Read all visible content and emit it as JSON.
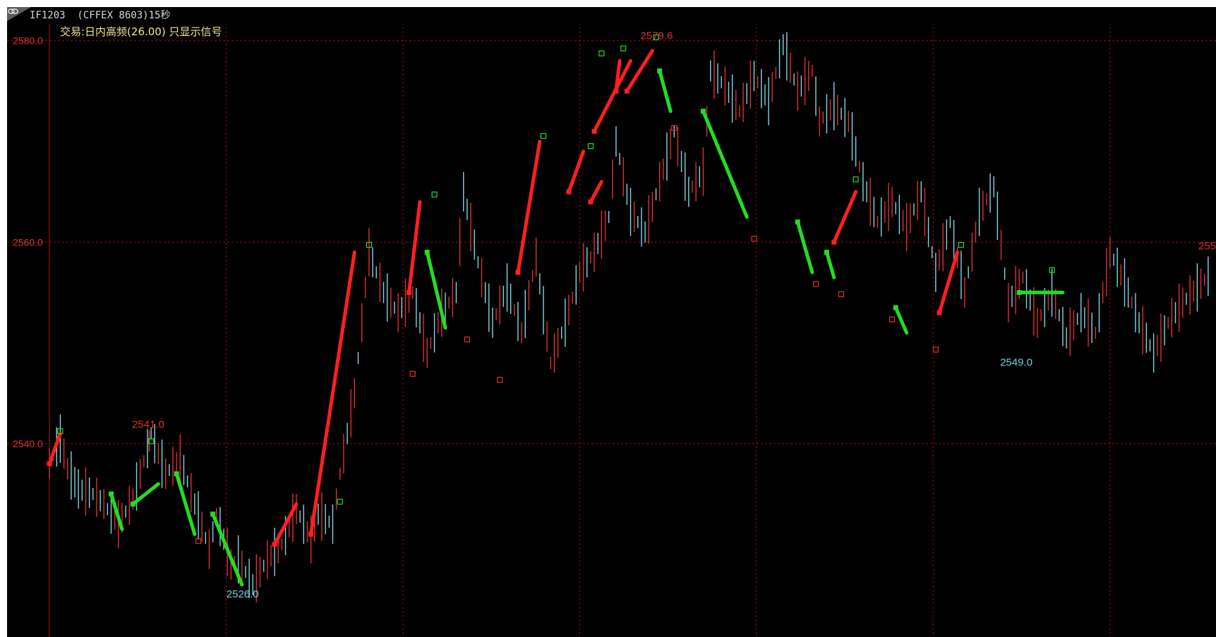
{
  "window": {
    "symbol_title": "IF1203  (CFFEX 8603)15秒",
    "strategy_label": "交易:日内高频(26.00) 只显示信号"
  },
  "colors": {
    "background": "#000000",
    "grid": "#8b1010",
    "axis": "#b01818",
    "up_bar": "#e03030",
    "down_bar": "#7fd6e6",
    "long_signal": "#ff1f1f",
    "short_signal": "#22dd22",
    "label_red": "#e03030",
    "label_cyan": "#6fd3e0"
  },
  "chart_data": {
    "type": "line",
    "title": "",
    "xlabel": "",
    "ylabel": "",
    "ylim": [
      2520.8,
      2581.8
    ],
    "yticks": [
      2540.0,
      2560.0,
      2580.0
    ],
    "ytick_labels": [
      "2540.0",
      "2560.0",
      "2580.0"
    ],
    "grid": true,
    "x_vgrid_count": 6,
    "price_series": {
      "name": "",
      "x": [
        0,
        3,
        5,
        8,
        12,
        15,
        19,
        23,
        27,
        28,
        32,
        36,
        40,
        44,
        46,
        50,
        52,
        56,
        60,
        64,
        68,
        72,
        74,
        78,
        80,
        84,
        88,
        92,
        96,
        100,
        104,
        108,
        112,
        114,
        118,
        122,
        126,
        130,
        134,
        138,
        140,
        142,
        146,
        150,
        154,
        156,
        160,
        164,
        168,
        172,
        176,
        180,
        182,
        186,
        190,
        194,
        198,
        202,
        206,
        210,
        212,
        216,
        220,
        224,
        228,
        232,
        236,
        240,
        244,
        248,
        252,
        256,
        260,
        264,
        268,
        272,
        276,
        280,
        284,
        288,
        292,
        296,
        300,
        304,
        308,
        312,
        316,
        320
      ],
      "y": [
        2538.0,
        2540.5,
        2537.5,
        2535.5,
        2535.0,
        2534.0,
        2532.0,
        2534.5,
        2539.5,
        2541.0,
        2537.0,
        2538.5,
        2534.0,
        2529.5,
        2533.0,
        2528.0,
        2528.5,
        2526.0,
        2528.5,
        2530.0,
        2533.5,
        2530.5,
        2533.0,
        2532.0,
        2537.0,
        2545.0,
        2559.0,
        2555.0,
        2553.0,
        2555.0,
        2549.0,
        2553.0,
        2555.0,
        2565.0,
        2558.0,
        2552.0,
        2555.5,
        2551.0,
        2558.5,
        2548.0,
        2550.0,
        2552.0,
        2557.0,
        2559.0,
        2562.5,
        2570.0,
        2563.0,
        2561.0,
        2566.0,
        2571.0,
        2565.0,
        2567.0,
        2577.0,
        2575.5,
        2573.0,
        2576.5,
        2574.0,
        2579.6,
        2575.0,
        2577.0,
        2572.0,
        2573.5,
        2572.0,
        2566.0,
        2562.0,
        2564.0,
        2561.5,
        2565.0,
        2557.0,
        2562.0,
        2555.0,
        2563.0,
        2565.5,
        2554.0,
        2556.5,
        2552.0,
        2555.0,
        2550.5,
        2553.0,
        2551.0,
        2559.0,
        2556.0,
        2552.0,
        2549.0,
        2552.0,
        2554.0,
        2555.5,
        2557.0
      ]
    },
    "signals": [
      {
        "dir": "long",
        "x": [
          0,
          3
        ],
        "y": [
          2538.0,
          2541.0
        ]
      },
      {
        "dir": "short",
        "x": [
          17,
          20
        ],
        "y": [
          2535.0,
          2531.5
        ]
      },
      {
        "dir": "short",
        "x": [
          23,
          30
        ],
        "y": [
          2534.0,
          2536.0
        ]
      },
      {
        "dir": "short",
        "x": [
          35,
          40
        ],
        "y": [
          2537.0,
          2531.0
        ]
      },
      {
        "dir": "short",
        "x": [
          45,
          53
        ],
        "y": [
          2533.0,
          2526.0
        ]
      },
      {
        "dir": "long",
        "x": [
          62,
          68
        ],
        "y": [
          2530.0,
          2534.0
        ]
      },
      {
        "dir": "long",
        "x": [
          72,
          84
        ],
        "y": [
          2531.0,
          2559.0
        ]
      },
      {
        "dir": "long",
        "x": [
          99,
          102
        ],
        "y": [
          2555.0,
          2564.0
        ]
      },
      {
        "dir": "short",
        "x": [
          104,
          109
        ],
        "y": [
          2559.0,
          2551.5
        ]
      },
      {
        "dir": "long",
        "x": [
          129,
          135
        ],
        "y": [
          2557.0,
          2570.0
        ]
      },
      {
        "dir": "long",
        "x": [
          143,
          147
        ],
        "y": [
          2565.0,
          2569.0
        ]
      },
      {
        "dir": "long",
        "x": [
          149,
          152
        ],
        "y": [
          2564.0,
          2566.0
        ]
      },
      {
        "dir": "long",
        "x": [
          150,
          160
        ],
        "y": [
          2571.0,
          2578.0
        ]
      },
      {
        "dir": "long",
        "x": [
          156,
          157
        ],
        "y": [
          2575.0,
          2578.0
        ]
      },
      {
        "dir": "long",
        "x": [
          159,
          166
        ],
        "y": [
          2575.0,
          2579.0
        ]
      },
      {
        "dir": "short",
        "x": [
          168,
          171
        ],
        "y": [
          2577.0,
          2573.0
        ]
      },
      {
        "dir": "short",
        "x": [
          180,
          192
        ],
        "y": [
          2573.0,
          2562.5
        ]
      },
      {
        "dir": "short",
        "x": [
          206,
          210
        ],
        "y": [
          2562.0,
          2557.0
        ]
      },
      {
        "dir": "short",
        "x": [
          214,
          216
        ],
        "y": [
          2559.0,
          2556.5
        ]
      },
      {
        "dir": "long",
        "x": [
          216,
          222
        ],
        "y": [
          2560.0,
          2565.0
        ]
      },
      {
        "dir": "short",
        "x": [
          233,
          236
        ],
        "y": [
          2553.5,
          2551.0
        ]
      },
      {
        "dir": "long",
        "x": [
          245,
          250
        ],
        "y": [
          2553.0,
          2559.0
        ]
      },
      {
        "dir": "short",
        "x": [
          267,
          279
        ],
        "y": [
          2555.0,
          2555.0
        ]
      }
    ],
    "markers_up": [
      {
        "x": 3,
        "y": 2540.5
      },
      {
        "x": 28,
        "y": 2539.5
      },
      {
        "x": 80,
        "y": 2533.5
      },
      {
        "x": 88,
        "y": 2559.0
      },
      {
        "x": 106,
        "y": 2564.0
      },
      {
        "x": 136,
        "y": 2569.8
      },
      {
        "x": 149,
        "y": 2568.8
      },
      {
        "x": 152,
        "y": 2578.0
      },
      {
        "x": 158,
        "y": 2578.5
      },
      {
        "x": 167,
        "y": 2579.6
      },
      {
        "x": 222,
        "y": 2565.5
      },
      {
        "x": 251,
        "y": 2559.0
      },
      {
        "x": 276,
        "y": 2556.5
      }
    ],
    "markers_down": [
      {
        "x": 41,
        "y": 2531.0
      },
      {
        "x": 100,
        "y": 2547.6
      },
      {
        "x": 115,
        "y": 2551.0
      },
      {
        "x": 124,
        "y": 2547.0
      },
      {
        "x": 172,
        "y": 2572.0
      },
      {
        "x": 194,
        "y": 2561.0
      },
      {
        "x": 211,
        "y": 2556.5
      },
      {
        "x": 218,
        "y": 2555.5
      },
      {
        "x": 232,
        "y": 2553.0
      },
      {
        "x": 244,
        "y": 2550.0
      }
    ],
    "annotations": [
      {
        "text": "2541.0",
        "x": 27,
        "y": 2541.0,
        "color": "red",
        "pos": "above"
      },
      {
        "text": "2526.0",
        "x": 53,
        "y": 2526.0,
        "color": "cyan",
        "pos": "below"
      },
      {
        "text": "2579.6",
        "x": 167,
        "y": 2579.6,
        "color": "red",
        "pos": "above"
      },
      {
        "text": "2549.0",
        "x": 266,
        "y": 2549.0,
        "color": "cyan",
        "pos": "below"
      },
      {
        "text": "255",
        "x": 320,
        "y": 2559.0,
        "color": "red",
        "pos": "above-edge"
      }
    ]
  }
}
